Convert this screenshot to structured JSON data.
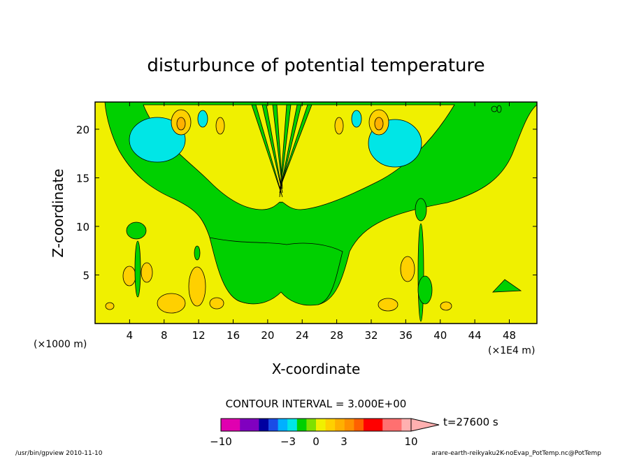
{
  "chart_data": {
    "type": "heatmap",
    "title": "disturbunce of potential temperature",
    "xlabel": "X-coordinate",
    "ylabel": "Z-coordinate",
    "x_unit_note": "(×1000 m)",
    "x_scale_note": "(×1E4 m)",
    "xlim": [
      0,
      51.2
    ],
    "ylim": [
      0,
      22.8
    ],
    "x_ticks": [
      "4",
      "8",
      "12",
      "16",
      "20",
      "24",
      "28",
      "32",
      "36",
      "40",
      "44",
      "48"
    ],
    "x_tick_values": [
      4,
      8,
      12,
      16,
      20,
      24,
      28,
      32,
      36,
      40,
      44,
      48
    ],
    "y_ticks": [
      "5",
      "10",
      "15",
      "20"
    ],
    "y_tick_values": [
      5,
      10,
      15,
      20
    ],
    "contour_interval": "CONTOUR INTERVAL = 3.000E+00",
    "time_label": "t=27600 s",
    "colorbar_labels": [
      "−10",
      "−3",
      "0",
      "3",
      "10"
    ],
    "colorbar_colors": [
      "#e000b0",
      "#e000b0",
      "#8000c0",
      "#8000c0",
      "#0000a0",
      "#1a4ce6",
      "#00b0ff",
      "#00e6e6",
      "#00d000",
      "#80e000",
      "#f0f000",
      "#ffd000",
      "#ffb000",
      "#ff9000",
      "#ff6000",
      "#ff0000",
      "#ff0000",
      "#ff7070",
      "#ff7070",
      "#ffb0b0"
    ],
    "background_color": "#f0f000",
    "grid": false
  },
  "footer": {
    "left": "/usr/bin/gpview  2010-11-10",
    "right": "arare-earth-reikyaku2K-noEvap_PotTemp.nc@PotTemp"
  }
}
